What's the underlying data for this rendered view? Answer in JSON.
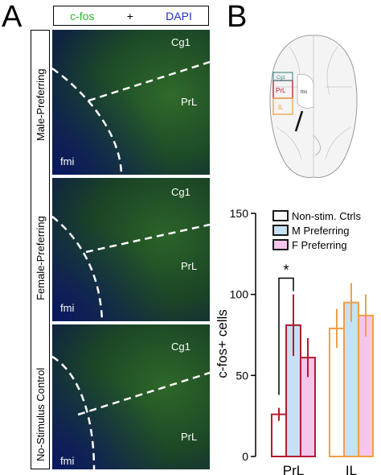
{
  "panel_a": {
    "letter": "A",
    "stain_legend": {
      "cfos": "c-fos",
      "plus": "+",
      "dapi": "DAPI",
      "cfos_color": "#2db52d",
      "dapi_color": "#1f2fbf"
    },
    "rows": [
      {
        "group": "Male-Preferring",
        "region_top": "Cg1",
        "region_mid": "PrL",
        "region_white": "fmi"
      },
      {
        "group": "Female-Preferring",
        "region_top": "Cg1",
        "region_mid": "PrL",
        "region_white": "fmi"
      },
      {
        "group": "No-Stimulus Control",
        "region_top": "Cg1",
        "region_mid": "PrL",
        "region_white": "fmi"
      }
    ]
  },
  "panel_b": {
    "letter": "B",
    "atlas_labels": {
      "cg1": "Cg1",
      "prl": "PrL",
      "il": "IL",
      "fmi": "fmi"
    }
  },
  "chart_data": {
    "type": "bar",
    "categories": [
      "PrL",
      "IL"
    ],
    "ylabel": "c-fos+ cells",
    "ylim": [
      0,
      150
    ],
    "yticks": [
      0,
      50,
      100,
      150
    ],
    "series": [
      {
        "name": "Non-stim. Ctrls",
        "values": [
          26,
          79
        ],
        "errors": [
          4,
          12
        ],
        "fill": "#ffffff",
        "prl_edge": "#b01c2e",
        "il_edge": "#f0a044"
      },
      {
        "name": "M Preferring",
        "values": [
          81,
          95
        ],
        "errors": [
          19,
          12
        ],
        "fill": "#c7e0f5",
        "prl_edge": "#b01c2e",
        "il_edge": "#f0a044"
      },
      {
        "name": "F Preferring",
        "values": [
          61,
          87
        ],
        "errors": [
          12,
          13
        ],
        "fill": "#f5c6ec",
        "prl_edge": "#b01c2e",
        "il_edge": "#f0a044"
      }
    ],
    "annotation": "*",
    "legend_placement": "top-right"
  }
}
